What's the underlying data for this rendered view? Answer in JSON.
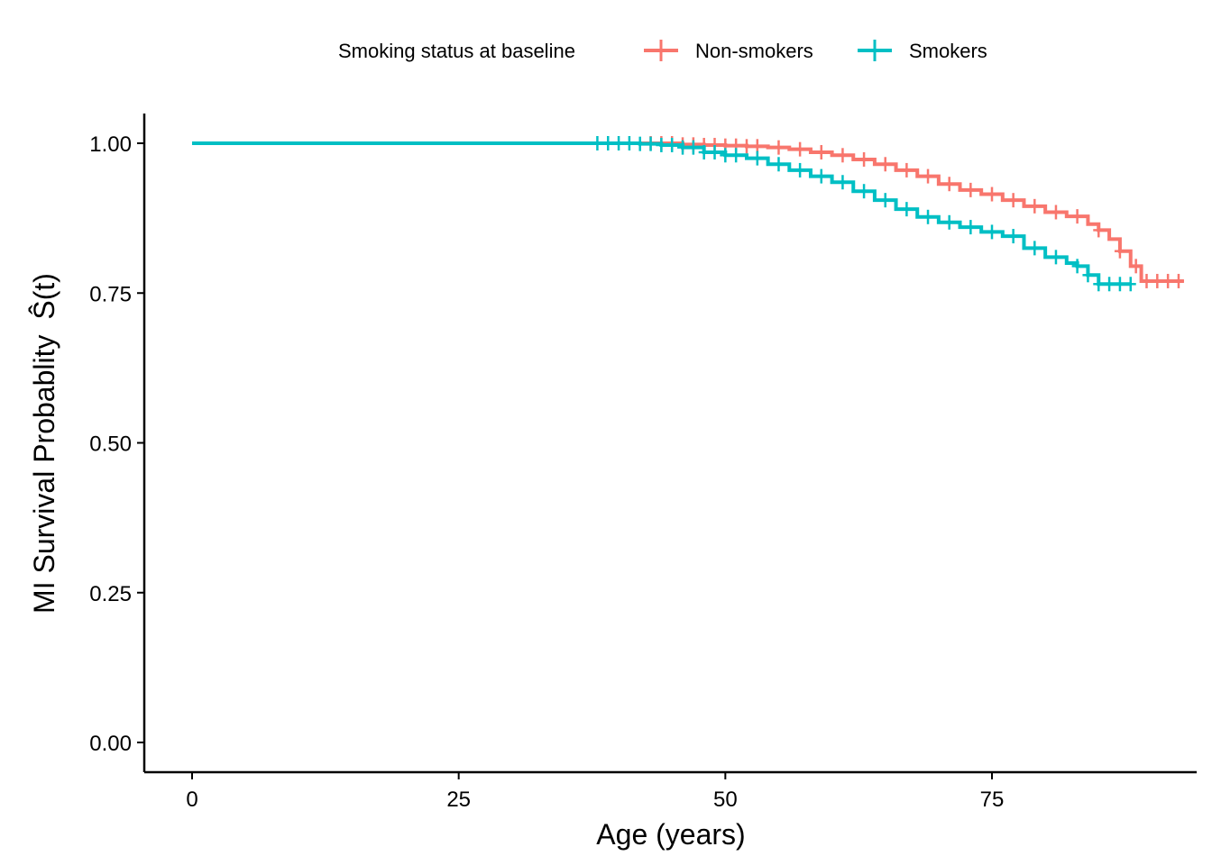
{
  "chart_data": {
    "type": "line",
    "subtype": "kaplan-meier step curve",
    "xlabel": "Age (years)",
    "ylabel": "MI Survival Probablity",
    "ylabel_symbol": "Ŝ(t)",
    "xlim": [
      0,
      93
    ],
    "ylim": [
      0,
      1
    ],
    "x_ticks": [
      0,
      25,
      50,
      75
    ],
    "y_ticks": [
      0,
      0.25,
      0.5,
      0.75,
      1
    ],
    "y_tick_labels": [
      "0.00",
      "0.25",
      "0.50",
      "0.75",
      "1.00"
    ],
    "grid": false,
    "legend": {
      "position": "top",
      "title": "Smoking status at baseline",
      "entries": [
        "Non-smokers",
        "Smokers"
      ]
    },
    "series": [
      {
        "name": "Non-smokers",
        "color": "#F8766D",
        "points": [
          [
            0,
            1.0
          ],
          [
            44,
            1.0
          ],
          [
            46,
            0.998
          ],
          [
            48,
            0.997
          ],
          [
            50,
            0.996
          ],
          [
            52,
            0.995
          ],
          [
            54,
            0.993
          ],
          [
            56,
            0.99
          ],
          [
            58,
            0.985
          ],
          [
            60,
            0.98
          ],
          [
            62,
            0.973
          ],
          [
            64,
            0.965
          ],
          [
            66,
            0.955
          ],
          [
            68,
            0.945
          ],
          [
            70,
            0.932
          ],
          [
            72,
            0.922
          ],
          [
            74,
            0.915
          ],
          [
            76,
            0.905
          ],
          [
            78,
            0.895
          ],
          [
            80,
            0.885
          ],
          [
            82,
            0.878
          ],
          [
            84,
            0.865
          ],
          [
            85,
            0.855
          ],
          [
            86,
            0.84
          ],
          [
            87,
            0.82
          ],
          [
            88,
            0.795
          ],
          [
            89,
            0.77
          ],
          [
            93,
            0.77
          ]
        ],
        "censor_x": [
          43,
          44,
          45,
          46,
          47,
          48,
          49,
          50,
          51,
          52,
          53,
          55,
          57,
          59,
          61,
          63,
          65,
          67,
          69,
          71,
          73,
          75,
          77,
          79,
          81,
          83,
          85,
          87,
          88.5,
          89.5,
          90.5,
          91.5,
          92.5
        ]
      },
      {
        "name": "Smokers",
        "color": "#00BFC4",
        "points": [
          [
            0,
            1.0
          ],
          [
            38,
            1.0
          ],
          [
            42,
            0.999
          ],
          [
            44,
            0.997
          ],
          [
            46,
            0.993
          ],
          [
            48,
            0.985
          ],
          [
            50,
            0.98
          ],
          [
            52,
            0.975
          ],
          [
            54,
            0.965
          ],
          [
            56,
            0.955
          ],
          [
            58,
            0.945
          ],
          [
            60,
            0.935
          ],
          [
            62,
            0.92
          ],
          [
            64,
            0.905
          ],
          [
            66,
            0.89
          ],
          [
            68,
            0.877
          ],
          [
            70,
            0.868
          ],
          [
            72,
            0.86
          ],
          [
            74,
            0.852
          ],
          [
            76,
            0.845
          ],
          [
            78,
            0.825
          ],
          [
            80,
            0.81
          ],
          [
            82,
            0.8
          ],
          [
            83,
            0.795
          ],
          [
            84,
            0.78
          ],
          [
            85,
            0.765
          ],
          [
            88,
            0.765
          ]
        ],
        "censor_x": [
          38,
          39,
          40,
          41,
          42,
          43,
          44,
          45,
          46,
          47,
          48,
          49,
          50,
          51,
          53,
          55,
          57,
          59,
          61,
          63,
          65,
          67,
          69,
          71,
          73,
          75,
          77,
          79,
          81,
          83,
          84,
          85,
          86,
          87,
          88
        ]
      }
    ]
  }
}
